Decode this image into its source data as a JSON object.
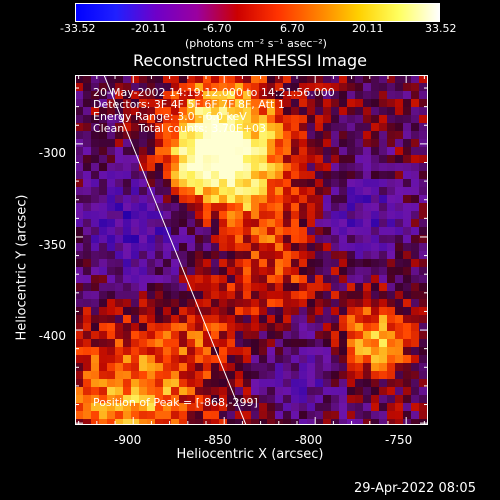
{
  "colorbar": {
    "tick_labels": [
      "-33.52",
      "-20.11",
      "-6.70",
      "6.70",
      "20.11",
      "33.52"
    ],
    "units": "(photons cm⁻² s⁻¹ asec⁻²)",
    "gradient": [
      "#0000ff",
      "#2020ff",
      "#6f00c8",
      "#9a00a0",
      "#cc0000",
      "#ff3300",
      "#ff8000",
      "#ffd000",
      "#ffff60",
      "#ffffff"
    ]
  },
  "title": "Reconstructed RHESSI Image",
  "annotations": {
    "line1": "20-May-2002 14:19:12.000 to 14:21:56.000",
    "line2": "Detectors: 3F 4F 5F 6F 7F 8F, Att 1",
    "line3": "Energy Range: 3.0 - 6.0 keV",
    "line4": "Clean    Total counts: 3.70E+03",
    "peak": "Position of Peak = [-868,-299]"
  },
  "axes": {
    "xlabel": "Heliocentric X (arcsec)",
    "ylabel": "Heliocentric Y (arcsec)",
    "xticks": [
      "-900",
      "-850",
      "-800",
      "-750"
    ],
    "yticks": [
      "-300",
      "-350",
      "-400"
    ],
    "xlim": [
      -932,
      -738
    ],
    "ylim": [
      -451,
      -263
    ]
  },
  "footer_timestamp": "29-Apr-2022 08:05"
}
